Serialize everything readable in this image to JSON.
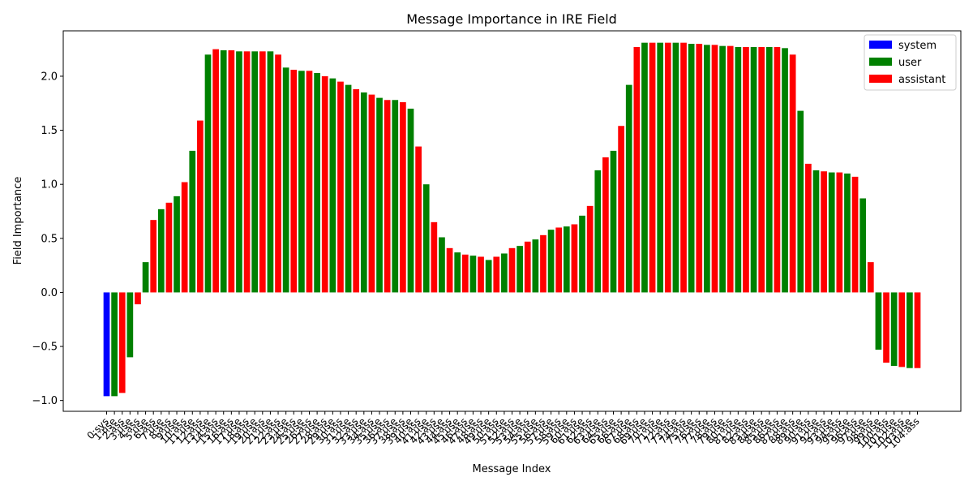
{
  "chart_data": {
    "type": "bar",
    "title": "Message Importance in IRE Field",
    "xlabel": "Message Index",
    "ylabel": "Field Importance",
    "ylim": [
      -1.1,
      2.42
    ],
    "yticks": [
      -1.0,
      -0.5,
      0.0,
      0.5,
      1.0,
      1.5,
      2.0
    ],
    "ytick_labels": [
      "−1.0",
      "−0.5",
      "0.0",
      "0.5",
      "1.0",
      "1.5",
      "2.0"
    ],
    "grid": false,
    "legend_position": "top-right",
    "legend": [
      {
        "role": "system",
        "label": "system",
        "color": "#0000ff"
      },
      {
        "role": "user",
        "label": "user",
        "color": "#008000"
      },
      {
        "role": "assistant",
        "label": "assistant",
        "color": "#ff0000"
      }
    ],
    "categories": [
      "0:sys",
      "1:use",
      "2:ass",
      "3:use",
      "4:ass",
      "5:use",
      "6:ass",
      "7:use",
      "8:ass",
      "9:use",
      "10:ass",
      "11:use",
      "12:ass",
      "13:use",
      "14:ass",
      "15:use",
      "16:ass",
      "17:use",
      "18:ass",
      "19:use",
      "20:ass",
      "21:use",
      "22:ass",
      "23:use",
      "24:ass",
      "25:use",
      "26:ass",
      "27:use",
      "28:ass",
      "29:use",
      "30:ass",
      "31:use",
      "32:ass",
      "33:use",
      "34:ass",
      "35:use",
      "36:ass",
      "37:use",
      "38:ass",
      "39:use",
      "40:ass",
      "41:use",
      "42:ass",
      "43:use",
      "44:ass",
      "45:use",
      "46:ass",
      "47:use",
      "48:ass",
      "49:use",
      "50:ass",
      "51:use",
      "52:ass",
      "53:use",
      "54:ass",
      "55:use",
      "56:ass",
      "57:use",
      "58:ass",
      "59:use",
      "60:ass",
      "61:use",
      "62:ass",
      "63:use",
      "64:ass",
      "65:use",
      "66:ass",
      "67:use",
      "68:ass",
      "69:use",
      "70:ass",
      "71:use",
      "72:ass",
      "73:use",
      "74:ass",
      "75:use",
      "76:ass",
      "77:use",
      "78:ass",
      "79:use",
      "80:ass",
      "81:use",
      "82:ass",
      "83:use",
      "84:ass",
      "85:use",
      "86:ass",
      "87:use",
      "88:ass",
      "89:use",
      "90:ass",
      "91:use",
      "92:ass",
      "93:use",
      "94:ass",
      "95:use",
      "96:ass",
      "97:use",
      "98:ass",
      "99:use",
      "100:ass",
      "101:use",
      "102:ass",
      "103:use",
      "104:ass"
    ],
    "roles": [
      "system",
      "user",
      "assistant",
      "user",
      "assistant",
      "user",
      "assistant",
      "user",
      "assistant",
      "user",
      "assistant",
      "user",
      "assistant",
      "user",
      "assistant",
      "user",
      "assistant",
      "user",
      "assistant",
      "user",
      "assistant",
      "user",
      "assistant",
      "user",
      "assistant",
      "user",
      "assistant",
      "user",
      "assistant",
      "user",
      "assistant",
      "user",
      "assistant",
      "user",
      "assistant",
      "user",
      "assistant",
      "user",
      "assistant",
      "user",
      "assistant",
      "user",
      "assistant",
      "user",
      "assistant",
      "user",
      "assistant",
      "user",
      "assistant",
      "user",
      "assistant",
      "user",
      "assistant",
      "user",
      "assistant",
      "user",
      "assistant",
      "user",
      "assistant",
      "user",
      "assistant",
      "user",
      "assistant",
      "user",
      "assistant",
      "user",
      "assistant",
      "user",
      "assistant",
      "user",
      "assistant",
      "user",
      "assistant",
      "user",
      "assistant",
      "user",
      "assistant",
      "user",
      "assistant",
      "user",
      "assistant",
      "user",
      "assistant",
      "user",
      "assistant",
      "user",
      "assistant",
      "user",
      "assistant",
      "user",
      "assistant",
      "user",
      "assistant",
      "user",
      "assistant",
      "user",
      "assistant",
      "user",
      "assistant",
      "user",
      "assistant",
      "user",
      "assistant",
      "user",
      "assistant"
    ],
    "values": [
      -0.96,
      -0.96,
      -0.93,
      -0.6,
      -0.11,
      0.28,
      0.67,
      0.77,
      0.83,
      0.89,
      1.02,
      1.31,
      1.59,
      2.2,
      2.25,
      2.24,
      2.24,
      2.23,
      2.23,
      2.23,
      2.23,
      2.23,
      2.2,
      2.08,
      2.06,
      2.05,
      2.05,
      2.03,
      2.0,
      1.98,
      1.95,
      1.92,
      1.88,
      1.85,
      1.83,
      1.8,
      1.78,
      1.78,
      1.76,
      1.7,
      1.35,
      1.0,
      0.65,
      0.51,
      0.41,
      0.37,
      0.35,
      0.34,
      0.33,
      0.3,
      0.33,
      0.36,
      0.41,
      0.43,
      0.47,
      0.49,
      0.53,
      0.58,
      0.6,
      0.61,
      0.63,
      0.71,
      0.8,
      1.13,
      1.25,
      1.31,
      1.54,
      1.92,
      2.27,
      2.31,
      2.31,
      2.31,
      2.31,
      2.31,
      2.31,
      2.3,
      2.3,
      2.29,
      2.29,
      2.28,
      2.28,
      2.27,
      2.27,
      2.27,
      2.27,
      2.27,
      2.27,
      2.26,
      2.2,
      1.68,
      1.19,
      1.13,
      1.12,
      1.11,
      1.11,
      1.1,
      1.07,
      0.87,
      0.28,
      -0.53,
      -0.65,
      -0.68,
      -0.69,
      -0.7,
      -0.7
    ]
  }
}
